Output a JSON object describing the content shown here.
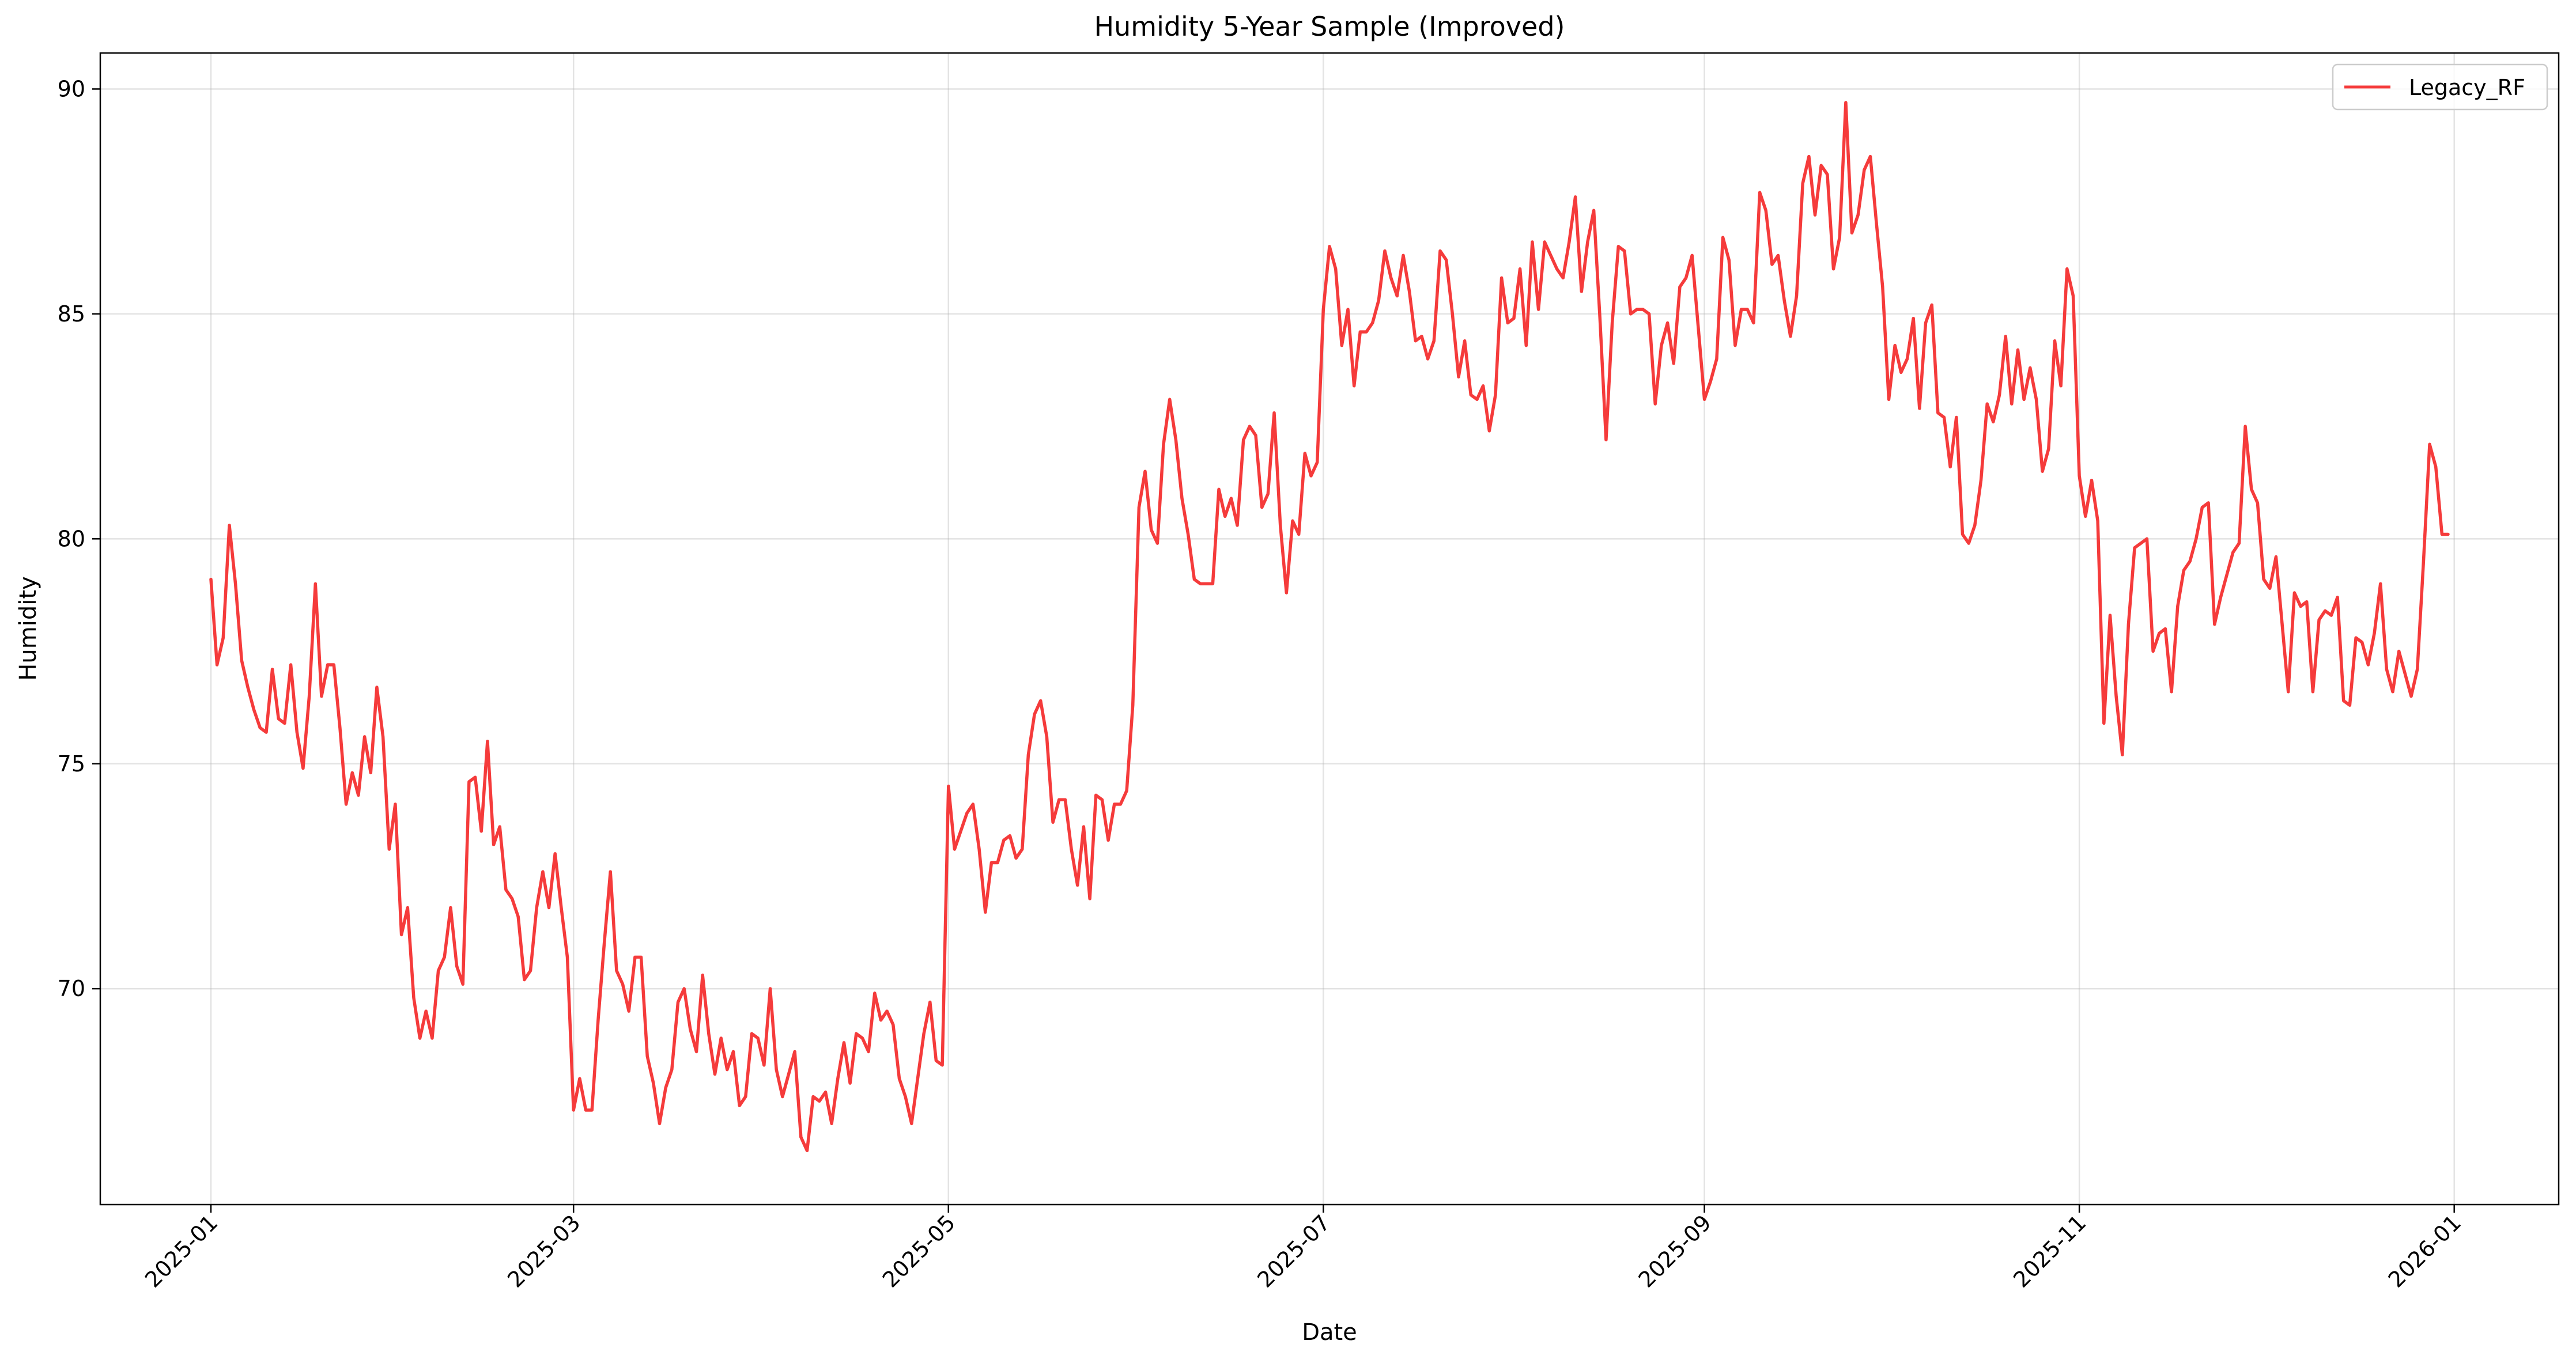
{
  "chart_data": {
    "type": "line",
    "title": "Humidity 5-Year Sample (Improved)",
    "xlabel": "Date",
    "ylabel": "Humidity",
    "x_type": "date",
    "xlim": [
      "2024-12-14",
      "2026-01-18"
    ],
    "ylim": [
      65.2,
      90.8
    ],
    "x_ticks": [
      "2025-01",
      "2025-03",
      "2025-05",
      "2025-07",
      "2025-09",
      "2025-11",
      "2026-01"
    ],
    "x_tick_dates": [
      "2025-01-01",
      "2025-03-01",
      "2025-05-01",
      "2025-07-01",
      "2025-09-01",
      "2025-11-01",
      "2026-01-01"
    ],
    "y_ticks": [
      70,
      75,
      80,
      85,
      90
    ],
    "grid": true,
    "legend": {
      "position": "upper-right",
      "entries": [
        "Legacy_RF"
      ]
    },
    "series": [
      {
        "name": "Legacy_RF",
        "color": "#f53b3b",
        "x": [
          "2025-01-01",
          "2025-01-02",
          "2025-01-03",
          "2025-01-04",
          "2025-01-05",
          "2025-01-06",
          "2025-01-07",
          "2025-01-08",
          "2025-01-09",
          "2025-01-10",
          "2025-01-11",
          "2025-01-12",
          "2025-01-13",
          "2025-01-14",
          "2025-01-15",
          "2025-01-16",
          "2025-01-17",
          "2025-01-18",
          "2025-01-19",
          "2025-01-20",
          "2025-01-21",
          "2025-01-22",
          "2025-01-23",
          "2025-01-24",
          "2025-01-25",
          "2025-01-26",
          "2025-01-27",
          "2025-01-28",
          "2025-01-29",
          "2025-01-30",
          "2025-01-31",
          "2025-02-01",
          "2025-02-02",
          "2025-02-03",
          "2025-02-04",
          "2025-02-05",
          "2025-02-06",
          "2025-02-07",
          "2025-02-08",
          "2025-02-09",
          "2025-02-10",
          "2025-02-11",
          "2025-02-12",
          "2025-02-13",
          "2025-02-14",
          "2025-02-15",
          "2025-02-16",
          "2025-02-17",
          "2025-02-18",
          "2025-02-19",
          "2025-02-20",
          "2025-02-21",
          "2025-02-22",
          "2025-02-23",
          "2025-02-24",
          "2025-02-25",
          "2025-02-26",
          "2025-02-27",
          "2025-02-28",
          "2025-03-01",
          "2025-03-02",
          "2025-03-03",
          "2025-03-04",
          "2025-03-05",
          "2025-03-06",
          "2025-03-07",
          "2025-03-08",
          "2025-03-09",
          "2025-03-10",
          "2025-03-11",
          "2025-03-12",
          "2025-03-13",
          "2025-03-14",
          "2025-03-15",
          "2025-03-16",
          "2025-03-17",
          "2025-03-18",
          "2025-03-19",
          "2025-03-20",
          "2025-03-21",
          "2025-03-22",
          "2025-03-23",
          "2025-03-24",
          "2025-03-25",
          "2025-03-26",
          "2025-03-27",
          "2025-03-28",
          "2025-03-29",
          "2025-03-30",
          "2025-03-31",
          "2025-04-01",
          "2025-04-02",
          "2025-04-03",
          "2025-04-04",
          "2025-04-05",
          "2025-04-06",
          "2025-04-07",
          "2025-04-08",
          "2025-04-09",
          "2025-04-10",
          "2025-04-11",
          "2025-04-12",
          "2025-04-13",
          "2025-04-14",
          "2025-04-15",
          "2025-04-16",
          "2025-04-17",
          "2025-04-18",
          "2025-04-19",
          "2025-04-20",
          "2025-04-21",
          "2025-04-22",
          "2025-04-23",
          "2025-04-24",
          "2025-04-25",
          "2025-04-26",
          "2025-04-27",
          "2025-04-28",
          "2025-04-29",
          "2025-04-30",
          "2025-05-01",
          "2025-05-02",
          "2025-05-03",
          "2025-05-04",
          "2025-05-05",
          "2025-05-06",
          "2025-05-07",
          "2025-05-08",
          "2025-05-09",
          "2025-05-10",
          "2025-05-11",
          "2025-05-12",
          "2025-05-13",
          "2025-05-14",
          "2025-05-15",
          "2025-05-16",
          "2025-05-17",
          "2025-05-18",
          "2025-05-19",
          "2025-05-20",
          "2025-05-21",
          "2025-05-22",
          "2025-05-23",
          "2025-05-24",
          "2025-05-25",
          "2025-05-26",
          "2025-05-27",
          "2025-05-28",
          "2025-05-29",
          "2025-05-30",
          "2025-05-31",
          "2025-06-01",
          "2025-06-02",
          "2025-06-03",
          "2025-06-04",
          "2025-06-05",
          "2025-06-06",
          "2025-06-07",
          "2025-06-08",
          "2025-06-09",
          "2025-06-10",
          "2025-06-11",
          "2025-06-12",
          "2025-06-13",
          "2025-06-14",
          "2025-06-15",
          "2025-06-16",
          "2025-06-17",
          "2025-06-18",
          "2025-06-19",
          "2025-06-20",
          "2025-06-21",
          "2025-06-22",
          "2025-06-23",
          "2025-06-24",
          "2025-06-25",
          "2025-06-26",
          "2025-06-27",
          "2025-06-28",
          "2025-06-29",
          "2025-06-30",
          "2025-07-01",
          "2025-07-02",
          "2025-07-03",
          "2025-07-04",
          "2025-07-05",
          "2025-07-06",
          "2025-07-07",
          "2025-07-08",
          "2025-07-09",
          "2025-07-10",
          "2025-07-11",
          "2025-07-12",
          "2025-07-13",
          "2025-07-14",
          "2025-07-15",
          "2025-07-16",
          "2025-07-17",
          "2025-07-18",
          "2025-07-19",
          "2025-07-20",
          "2025-07-21",
          "2025-07-22",
          "2025-07-23",
          "2025-07-24",
          "2025-07-25",
          "2025-07-26",
          "2025-07-27",
          "2025-07-28",
          "2025-07-29",
          "2025-07-30",
          "2025-07-31",
          "2025-08-01",
          "2025-08-02",
          "2025-08-03",
          "2025-08-04",
          "2025-08-05",
          "2025-08-06",
          "2025-08-07",
          "2025-08-08",
          "2025-08-09",
          "2025-08-10",
          "2025-08-11",
          "2025-08-12",
          "2025-08-13",
          "2025-08-14",
          "2025-08-15",
          "2025-08-16",
          "2025-08-17",
          "2025-08-18",
          "2025-08-19",
          "2025-08-20",
          "2025-08-21",
          "2025-08-22",
          "2025-08-23",
          "2025-08-24",
          "2025-08-25",
          "2025-08-26",
          "2025-08-27",
          "2025-08-28",
          "2025-08-29",
          "2025-08-30",
          "2025-08-31",
          "2025-09-01",
          "2025-09-02",
          "2025-09-03",
          "2025-09-04",
          "2025-09-05",
          "2025-09-06",
          "2025-09-07",
          "2025-09-08",
          "2025-09-09",
          "2025-09-10",
          "2025-09-11",
          "2025-09-12",
          "2025-09-13",
          "2025-09-14",
          "2025-09-15",
          "2025-09-16",
          "2025-09-17",
          "2025-09-18",
          "2025-09-19",
          "2025-09-20",
          "2025-09-21",
          "2025-09-22",
          "2025-09-23",
          "2025-09-24",
          "2025-09-25",
          "2025-09-26",
          "2025-09-27",
          "2025-09-28",
          "2025-09-29",
          "2025-09-30",
          "2025-10-01",
          "2025-10-02",
          "2025-10-03",
          "2025-10-04",
          "2025-10-05",
          "2025-10-06",
          "2025-10-07",
          "2025-10-08",
          "2025-10-09",
          "2025-10-10",
          "2025-10-11",
          "2025-10-12",
          "2025-10-13",
          "2025-10-14",
          "2025-10-15",
          "2025-10-16",
          "2025-10-17",
          "2025-10-18",
          "2025-10-19",
          "2025-10-20",
          "2025-10-21",
          "2025-10-22",
          "2025-10-23",
          "2025-10-24",
          "2025-10-25",
          "2025-10-26",
          "2025-10-27",
          "2025-10-28",
          "2025-10-29",
          "2025-10-30",
          "2025-10-31",
          "2025-11-01",
          "2025-11-02",
          "2025-11-03",
          "2025-11-04",
          "2025-11-05",
          "2025-11-06",
          "2025-11-07",
          "2025-11-08",
          "2025-11-09",
          "2025-11-10",
          "2025-11-11",
          "2025-11-12",
          "2025-11-13",
          "2025-11-14",
          "2025-11-15",
          "2025-11-16",
          "2025-11-17",
          "2025-11-18",
          "2025-11-19",
          "2025-11-20",
          "2025-11-21",
          "2025-11-22",
          "2025-11-23",
          "2025-11-24",
          "2025-11-25",
          "2025-11-26",
          "2025-11-27",
          "2025-11-28",
          "2025-11-29",
          "2025-11-30",
          "2025-12-01",
          "2025-12-02",
          "2025-12-03",
          "2025-12-04",
          "2025-12-05",
          "2025-12-06",
          "2025-12-07",
          "2025-12-08",
          "2025-12-09",
          "2025-12-10",
          "2025-12-11",
          "2025-12-12",
          "2025-12-13",
          "2025-12-14",
          "2025-12-15",
          "2025-12-16",
          "2025-12-17",
          "2025-12-18",
          "2025-12-19",
          "2025-12-20",
          "2025-12-21",
          "2025-12-22",
          "2025-12-23",
          "2025-12-24",
          "2025-12-25",
          "2025-12-26",
          "2025-12-27",
          "2025-12-28",
          "2025-12-29",
          "2025-12-30",
          "2025-12-31"
        ],
        "y": [
          79.1,
          77.2,
          77.8,
          80.3,
          79.0,
          77.3,
          76.7,
          76.2,
          75.8,
          75.7,
          77.1,
          76.0,
          75.9,
          77.2,
          75.7,
          74.9,
          76.5,
          79.0,
          76.5,
          77.2,
          77.2,
          75.8,
          74.1,
          74.8,
          74.3,
          75.6,
          74.8,
          76.7,
          75.6,
          73.1,
          74.1,
          71.2,
          71.8,
          69.8,
          68.9,
          69.5,
          68.9,
          70.4,
          70.7,
          71.8,
          70.5,
          70.1,
          74.6,
          74.7,
          73.5,
          75.5,
          73.2,
          73.6,
          72.2,
          72.0,
          71.6,
          70.2,
          70.4,
          71.8,
          72.6,
          71.8,
          73.0,
          71.8,
          70.7,
          67.3,
          68.0,
          67.3,
          67.3,
          69.3,
          71.0,
          72.6,
          70.4,
          70.1,
          69.5,
          70.7,
          70.7,
          68.5,
          67.9,
          67.0,
          67.8,
          68.2,
          69.7,
          70.0,
          69.1,
          68.6,
          70.3,
          69.0,
          68.1,
          68.9,
          68.2,
          68.6,
          67.4,
          67.6,
          69.0,
          68.9,
          68.3,
          70.0,
          68.2,
          67.6,
          68.1,
          68.6,
          66.7,
          66.4,
          67.6,
          67.5,
          67.7,
          67.0,
          68.0,
          68.8,
          67.9,
          69.0,
          68.9,
          68.6,
          69.9,
          69.3,
          69.5,
          69.2,
          68.0,
          67.6,
          67.0,
          68.0,
          69.0,
          69.7,
          68.4,
          68.3,
          74.5,
          73.1,
          73.5,
          73.9,
          74.1,
          73.1,
          71.7,
          72.8,
          72.8,
          73.3,
          73.4,
          72.9,
          73.1,
          75.2,
          76.1,
          76.4,
          75.6,
          73.7,
          74.2,
          74.2,
          73.1,
          72.3,
          73.6,
          72.0,
          74.3,
          74.2,
          73.3,
          74.1,
          74.1,
          74.4,
          76.3,
          80.7,
          81.5,
          80.2,
          79.9,
          82.1,
          83.1,
          82.2,
          80.9,
          80.1,
          79.1,
          79.0,
          79.0,
          79.0,
          81.1,
          80.5,
          80.9,
          80.3,
          82.2,
          82.5,
          82.3,
          80.7,
          81.0,
          82.8,
          80.3,
          78.8,
          80.4,
          80.1,
          81.9,
          81.4,
          81.7,
          85.1,
          86.5,
          86.0,
          84.3,
          85.1,
          83.4,
          84.6,
          84.6,
          84.8,
          85.3,
          86.4,
          85.8,
          85.4,
          86.3,
          85.5,
          84.4,
          84.5,
          84.0,
          84.4,
          86.4,
          86.2,
          85.0,
          83.6,
          84.4,
          83.2,
          83.1,
          83.4,
          82.4,
          83.2,
          85.8,
          84.8,
          84.9,
          86.0,
          84.3,
          86.6,
          85.1,
          86.6,
          86.3,
          86.0,
          85.8,
          86.6,
          87.6,
          85.5,
          86.6,
          87.3,
          84.9,
          82.2,
          84.8,
          86.5,
          86.4,
          85.0,
          85.1,
          85.1,
          85.0,
          83.0,
          84.3,
          84.8,
          83.9,
          85.6,
          85.8,
          86.3,
          84.7,
          83.1,
          83.5,
          84.0,
          86.7,
          86.2,
          84.3,
          85.1,
          85.1,
          84.8,
          87.7,
          87.3,
          86.1,
          86.3,
          85.3,
          84.5,
          85.4,
          87.9,
          88.5,
          87.2,
          88.3,
          88.1,
          86.0,
          86.7,
          89.7,
          86.8,
          87.2,
          88.2,
          88.5,
          87.0,
          85.6,
          83.1,
          84.3,
          83.7,
          84.0,
          84.9,
          82.9,
          84.8,
          85.2,
          82.8,
          82.7,
          81.6,
          82.7,
          80.1,
          79.9,
          80.3,
          81.3,
          83.0,
          82.6,
          83.2,
          84.5,
          83.0,
          84.2,
          83.1,
          83.8,
          83.1,
          81.5,
          82.0,
          84.4,
          83.4,
          86.0,
          85.4,
          81.4,
          80.5,
          81.3,
          80.4,
          75.9,
          78.3,
          76.5,
          75.2,
          78.1,
          79.8,
          79.9,
          80.0,
          77.5,
          77.9,
          78.0,
          76.6,
          78.5,
          79.3,
          79.5,
          80.0,
          80.7,
          80.8,
          78.1,
          78.7,
          79.2,
          79.7,
          79.9,
          82.5,
          81.1,
          80.8,
          79.1,
          78.9,
          79.6,
          78.1,
          76.6,
          78.8,
          78.5,
          78.6,
          76.6,
          78.2,
          78.4,
          78.3,
          78.7,
          76.4,
          76.3,
          77.8,
          77.7,
          77.2,
          77.9,
          79.0,
          77.1,
          76.6,
          77.5,
          77.0,
          76.5,
          77.1,
          79.5,
          82.1,
          81.6,
          80.1,
          80.1
        ]
      }
    ]
  }
}
